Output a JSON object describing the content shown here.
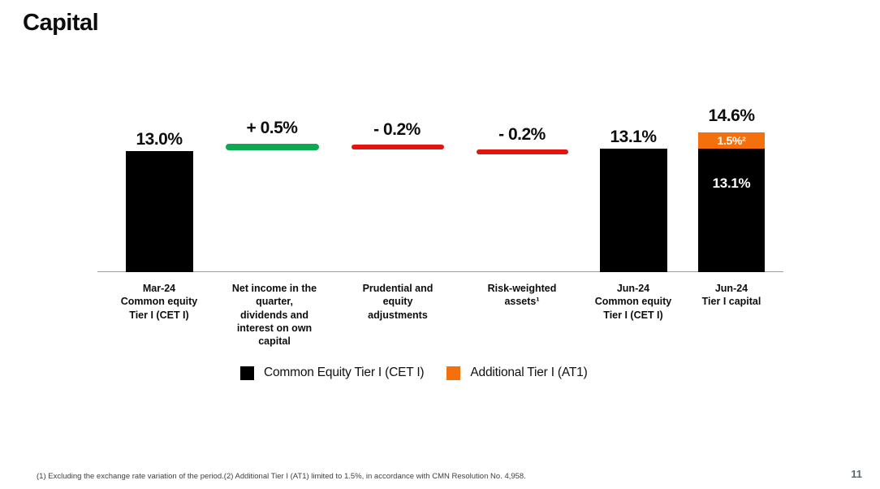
{
  "page": {
    "title": "Capital",
    "page_number": "11",
    "footnote": "(1) Excluding the exchange rate variation of the period.(2) Additional Tier I (AT1) limited to 1.5%, in accordance with CMN Resolution No. 4,958."
  },
  "colors": {
    "cet1_black": "#000000",
    "at1_orange": "#F4700C",
    "increase_green": "#0CA852",
    "decrease_red": "#E61313",
    "axis_gray": "#9C9C9C",
    "page_number_slate": "#5A6672"
  },
  "legend": {
    "items": [
      {
        "label": "Common Equity Tier I (CET I)",
        "color": "#000000"
      },
      {
        "label": "Additional Tier I (AT1)",
        "color": "#F4700C"
      }
    ]
  },
  "chart_data": {
    "type": "bar",
    "subtype": "waterfall",
    "title": "Capital",
    "unit": "%",
    "ylim": [
      0,
      15
    ],
    "grid": false,
    "legend_position": "bottom",
    "categories": [
      "Mar-24\nCommon equity\nTier I (CET I)",
      "Net income in the\nquarter,\ndividends and\ninterest on own\ncapital",
      "Prudential and\nequity\nadjustments",
      "Risk-weighted\nassets¹",
      "Jun-24\nCommon equity\nTier I (CET I)",
      "Jun-24\nTier I capital"
    ],
    "bars": [
      {
        "category": "Mar-24 Common equity Tier I (CET I)",
        "kind": "absolute",
        "value": 13.0,
        "display": "13.0%",
        "color": "#000000"
      },
      {
        "category": "Net income in the quarter, dividends and interest on own capital",
        "kind": "increase",
        "value": 0.5,
        "display": "+ 0.5%",
        "color": "#0CA852"
      },
      {
        "category": "Prudential and equity adjustments",
        "kind": "decrease",
        "value": -0.2,
        "display": "- 0.2%",
        "color": "#E61313"
      },
      {
        "category": "Risk-weighted assets¹",
        "kind": "decrease",
        "value": -0.2,
        "display": "- 0.2%",
        "color": "#E61313"
      },
      {
        "category": "Jun-24 Common equity Tier I (CET I)",
        "kind": "absolute",
        "value": 13.1,
        "display": "13.1%",
        "color": "#000000"
      },
      {
        "category": "Jun-24 Tier I capital",
        "kind": "stacked_total",
        "value": 14.6,
        "display": "14.6%",
        "segments": [
          {
            "name": "Common Equity Tier I (CET I)",
            "value": 13.1,
            "display": "13.1%",
            "color": "#000000"
          },
          {
            "name": "Additional Tier I (AT1)",
            "value": 1.5,
            "display": "1.5%²",
            "color": "#F4700C"
          }
        ]
      }
    ]
  }
}
